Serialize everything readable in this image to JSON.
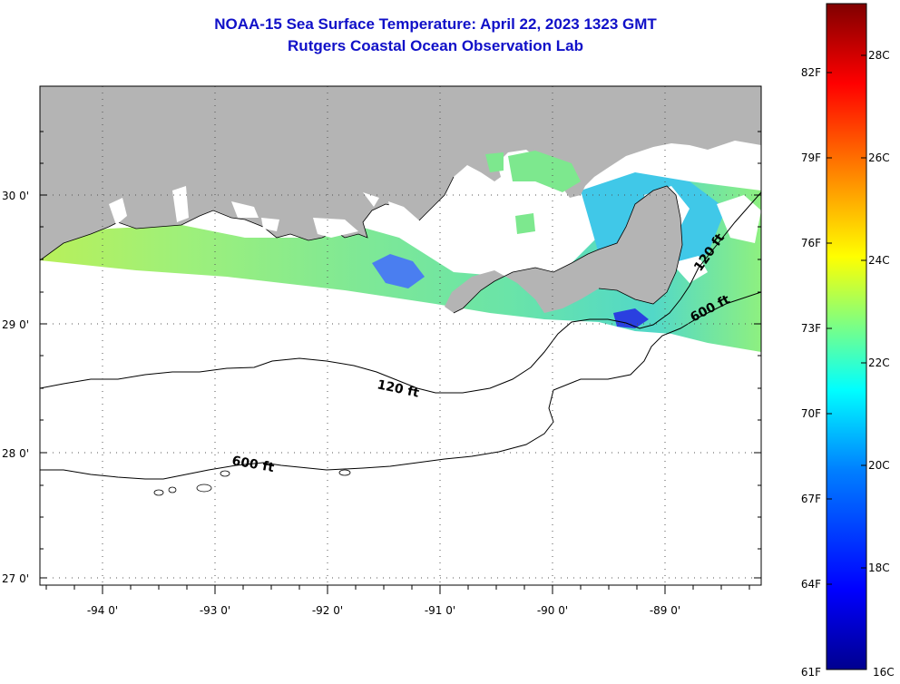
{
  "title": "NOAA-15 Sea Surface Temperature:  April 22, 2023 1323 GMT",
  "subtitle": "Rutgers Coastal Ocean Observation Lab",
  "map": {
    "lon_labels": [
      "-94 0'",
      "-93 0'",
      "-92 0'",
      "-91 0'",
      "-90 0'",
      "-89 0'"
    ],
    "lat_labels": [
      "30 0'",
      "29 0'",
      "28 0'",
      "27 0'"
    ],
    "contour_labels": [
      "120 ft",
      "600 ft",
      "120 ft",
      "600 ft"
    ],
    "colors": {
      "land": "#b4b4b4",
      "ocean_no_data": "#ffffff",
      "cloud": "#ffffff"
    }
  },
  "colorbar": {
    "f_labels": [
      "82F",
      "79F",
      "76F",
      "73F",
      "70F",
      "67F",
      "64F",
      "61F"
    ],
    "c_labels": [
      "28C",
      "26C",
      "24C",
      "22C",
      "20C",
      "18C",
      "16C"
    ],
    "colors": [
      "#00008f",
      "#0000ff",
      "#0080ff",
      "#00ffff",
      "#80ff80",
      "#ffff00",
      "#ff8000",
      "#ff0000",
      "#800000"
    ]
  }
}
